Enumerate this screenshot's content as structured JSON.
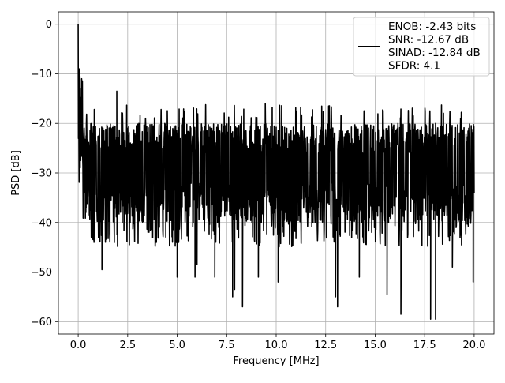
{
  "chart_data": {
    "type": "line",
    "title": "",
    "xlabel": "Frequency [MHz]",
    "ylabel": "PSD [dB]",
    "xlim": [
      -1.0,
      21.0
    ],
    "ylim": [
      -62.5,
      2.5
    ],
    "xticks": [
      0.0,
      2.5,
      5.0,
      7.5,
      10.0,
      12.5,
      15.0,
      17.5,
      20.0
    ],
    "xtick_labels": [
      "0.0",
      "2.5",
      "5.0",
      "7.5",
      "10.0",
      "12.5",
      "15.0",
      "17.5",
      "20.0"
    ],
    "yticks": [
      0,
      -10,
      -20,
      -30,
      -40,
      -50,
      -60
    ],
    "ytick_labels": [
      "0",
      "−10",
      "−20",
      "−30",
      "−40",
      "−50",
      "−60"
    ],
    "grid": true,
    "legend_position": "top-right",
    "legend_entries": [
      "ENOB: -2.43 bits",
      "SNR: -12.67 dB",
      "SINAD: -12.84 dB",
      "SFDR: 4.1"
    ],
    "series": [
      {
        "color": "#000000",
        "x_range": [
          0.0,
          20.0
        ],
        "peak": {
          "x": 0.0,
          "y": 0.0
        },
        "noise_floor_upper_approx": -20,
        "noise_floor_lower_approx": -40,
        "notable_points": [
          {
            "x": 0.0,
            "y": 0.0
          },
          {
            "x": 0.05,
            "y": -9
          },
          {
            "x": 0.1,
            "y": -13
          },
          {
            "x": 0.2,
            "y": -16
          },
          {
            "x": 0.4,
            "y": -37
          },
          {
            "x": 0.8,
            "y": -44
          },
          {
            "x": 1.2,
            "y": -49.5
          },
          {
            "x": 1.95,
            "y": -13.5
          },
          {
            "x": 3.95,
            "y": -44
          },
          {
            "x": 5.0,
            "y": -51
          },
          {
            "x": 5.9,
            "y": -51
          },
          {
            "x": 6.0,
            "y": -48.5
          },
          {
            "x": 6.9,
            "y": -51
          },
          {
            "x": 7.8,
            "y": -55
          },
          {
            "x": 7.9,
            "y": -53.5
          },
          {
            "x": 8.3,
            "y": -57
          },
          {
            "x": 9.1,
            "y": -51
          },
          {
            "x": 10.1,
            "y": -52
          },
          {
            "x": 12.3,
            "y": -16.5
          },
          {
            "x": 13.0,
            "y": -55
          },
          {
            "x": 13.1,
            "y": -57
          },
          {
            "x": 14.2,
            "y": -51
          },
          {
            "x": 15.6,
            "y": -54.5
          },
          {
            "x": 16.3,
            "y": -58.5
          },
          {
            "x": 17.8,
            "y": -59.5
          },
          {
            "x": 18.05,
            "y": -59.5
          },
          {
            "x": 18.9,
            "y": -49
          },
          {
            "x": 19.95,
            "y": -52
          }
        ]
      }
    ]
  }
}
